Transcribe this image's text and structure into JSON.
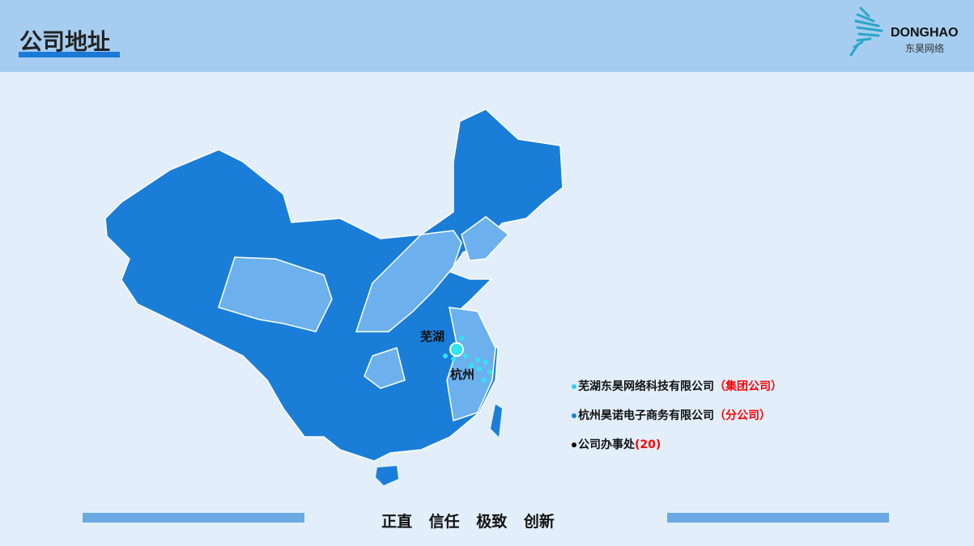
{
  "header": {
    "title": "公司地址",
    "logo_text": "DONGHAO",
    "logo_sub": "东昊网络"
  },
  "map": {
    "cities": [
      "芜湖",
      "杭州"
    ],
    "colors": {
      "dark": "#1a7ed8",
      "light": "#6cb1ee",
      "marker": "#2ee6f0"
    }
  },
  "legend": [
    {
      "name": "芜湖东昊网络科技有限公司",
      "tag": "（集团公司）",
      "dot_color": "#30d0f0"
    },
    {
      "name": "杭州昊诺电子商务有限公司",
      "tag": "（分公司）",
      "dot_color": "#1a7ed8"
    },
    {
      "name": "公司办事处",
      "tag": "(20)",
      "dot_color": "#000000"
    }
  ],
  "footer": {
    "motto": "正直 信任 极致 创新"
  }
}
